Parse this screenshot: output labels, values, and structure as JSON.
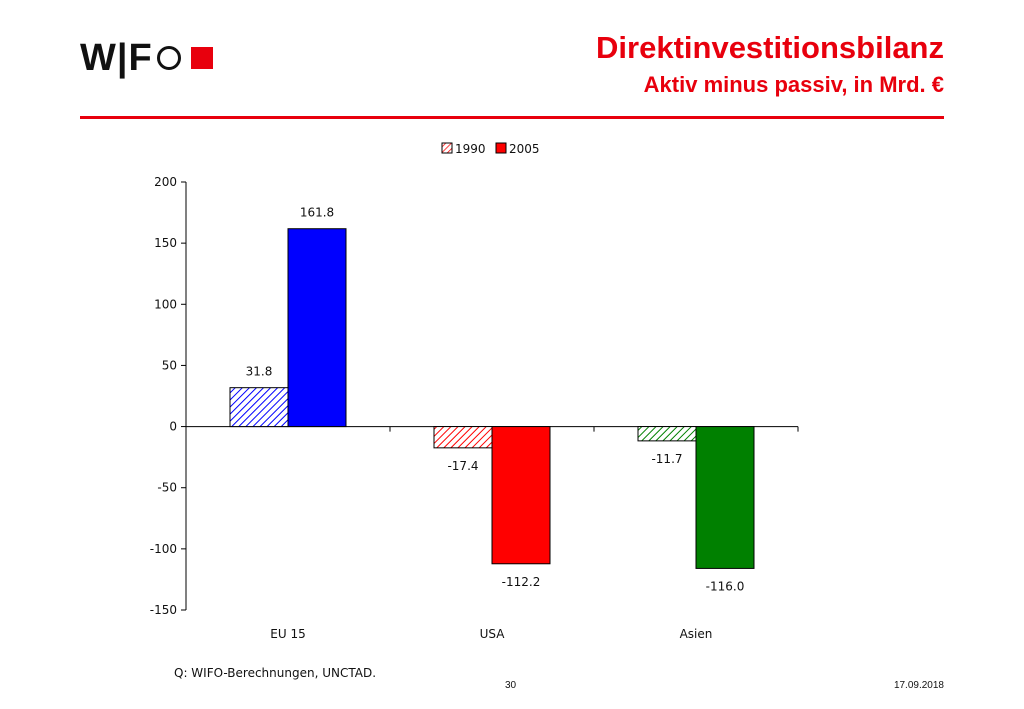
{
  "header": {
    "logo_text": "W|F",
    "title": "Direktinvestitionsbilanz",
    "subtitle": "Aktiv minus passiv, in Mrd. €"
  },
  "footer": {
    "source": "Q: WIFO-Berechnungen, UNCTAD.",
    "page_number": "30",
    "date": "17.09.2018"
  },
  "colors": {
    "brand_red": "#e8000d",
    "eu_blue": "#0000ff",
    "usa_red": "#ff0000",
    "asia_green": "#008000"
  },
  "chart_data": {
    "type": "bar",
    "categories": [
      "EU 15",
      "USA",
      "Asien"
    ],
    "series": [
      {
        "name": "1990",
        "values": [
          31.8,
          -17.4,
          -11.7
        ],
        "pattern": "hatched"
      },
      {
        "name": "2005",
        "values": [
          161.8,
          -112.2,
          -116.0
        ],
        "pattern": "solid"
      }
    ],
    "category_colors": [
      "#0000ff",
      "#ff0000",
      "#008000"
    ],
    "data_labels": [
      [
        "31.8",
        "-17.4",
        "-11.7"
      ],
      [
        "161.8",
        "-112.2",
        "-116.0"
      ]
    ],
    "ylim": [
      -150,
      200
    ],
    "yticks": [
      200,
      150,
      100,
      50,
      0,
      -50,
      -100,
      -150
    ],
    "ytick_labels": [
      "200",
      "150",
      "100",
      "50",
      "0",
      "-50",
      "-100",
      "-150"
    ],
    "legend": {
      "position": "top",
      "entries": [
        "1990",
        "2005"
      ]
    },
    "grid": false
  }
}
